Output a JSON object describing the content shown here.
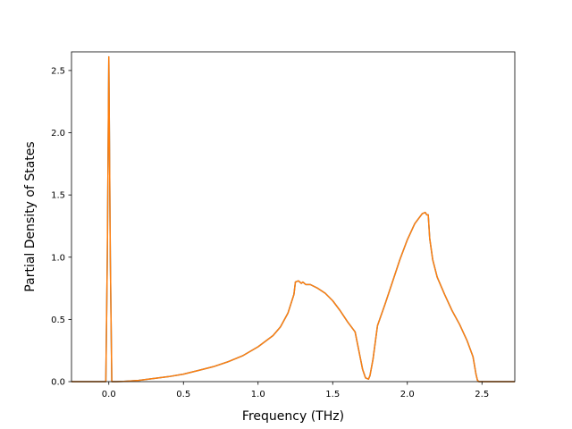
{
  "chart_data": {
    "type": "line",
    "title": "",
    "xlabel": "Frequency (THz)",
    "ylabel": "Partial Density of States",
    "xlim": [
      -0.25,
      2.72
    ],
    "ylim": [
      0.0,
      2.65
    ],
    "xticks": [
      0.0,
      0.5,
      1.0,
      1.5,
      2.0,
      2.5
    ],
    "xtick_labels": [
      "0.0",
      "0.5",
      "1.0",
      "1.5",
      "2.0",
      "2.5"
    ],
    "yticks": [
      0.0,
      0.5,
      1.0,
      1.5,
      2.0,
      2.5
    ],
    "ytick_labels": [
      "0.0",
      "0.5",
      "1.0",
      "1.5",
      "2.0",
      "2.5"
    ],
    "grid": false,
    "legend": "none",
    "series": [
      {
        "color": "#1f77b4",
        "x": [
          -0.25,
          -0.02,
          -0.01,
          0.0,
          0.01,
          0.02,
          0.05,
          0.1,
          0.2,
          0.3,
          0.4,
          0.5,
          0.6,
          0.7,
          0.8,
          0.9,
          1.0,
          1.1,
          1.15,
          1.2,
          1.24,
          1.25,
          1.27,
          1.29,
          1.3,
          1.32,
          1.35,
          1.4,
          1.45,
          1.5,
          1.55,
          1.6,
          1.65,
          1.68,
          1.7,
          1.72,
          1.74,
          1.75,
          1.77,
          1.8,
          1.85,
          1.9,
          1.95,
          2.0,
          2.05,
          2.1,
          2.12,
          2.13,
          2.14,
          2.15,
          2.17,
          2.2,
          2.25,
          2.3,
          2.35,
          2.4,
          2.44,
          2.46,
          2.47,
          2.48,
          2.5,
          2.6,
          2.72
        ],
        "y": [
          0.0,
          0.0,
          1.0,
          2.61,
          1.0,
          0.0,
          0.0,
          0.002,
          0.01,
          0.025,
          0.04,
          0.06,
          0.09,
          0.12,
          0.16,
          0.21,
          0.28,
          0.37,
          0.44,
          0.55,
          0.7,
          0.8,
          0.81,
          0.79,
          0.8,
          0.78,
          0.78,
          0.75,
          0.71,
          0.65,
          0.57,
          0.48,
          0.4,
          0.22,
          0.1,
          0.03,
          0.02,
          0.05,
          0.18,
          0.45,
          0.62,
          0.8,
          0.98,
          1.14,
          1.27,
          1.35,
          1.36,
          1.34,
          1.34,
          1.15,
          0.98,
          0.84,
          0.7,
          0.57,
          0.46,
          0.33,
          0.2,
          0.06,
          0.01,
          0.0,
          0.0,
          0.0,
          0.0
        ]
      },
      {
        "color": "#ff7f0e",
        "x": [
          -0.25,
          -0.02,
          -0.01,
          0.0,
          0.01,
          0.02,
          0.05,
          0.1,
          0.2,
          0.3,
          0.4,
          0.5,
          0.6,
          0.7,
          0.8,
          0.9,
          1.0,
          1.1,
          1.15,
          1.2,
          1.24,
          1.25,
          1.27,
          1.29,
          1.3,
          1.32,
          1.35,
          1.4,
          1.45,
          1.5,
          1.55,
          1.6,
          1.65,
          1.68,
          1.7,
          1.72,
          1.74,
          1.75,
          1.77,
          1.8,
          1.85,
          1.9,
          1.95,
          2.0,
          2.05,
          2.1,
          2.12,
          2.13,
          2.14,
          2.15,
          2.17,
          2.2,
          2.25,
          2.3,
          2.35,
          2.4,
          2.44,
          2.46,
          2.47,
          2.48,
          2.5,
          2.6,
          2.72
        ],
        "y": [
          0.0,
          0.0,
          1.0,
          2.61,
          1.0,
          0.0,
          0.0,
          0.002,
          0.01,
          0.025,
          0.04,
          0.06,
          0.09,
          0.12,
          0.16,
          0.21,
          0.28,
          0.37,
          0.44,
          0.55,
          0.7,
          0.8,
          0.81,
          0.79,
          0.8,
          0.78,
          0.78,
          0.75,
          0.71,
          0.65,
          0.57,
          0.48,
          0.4,
          0.22,
          0.1,
          0.03,
          0.02,
          0.05,
          0.18,
          0.45,
          0.62,
          0.8,
          0.98,
          1.14,
          1.27,
          1.35,
          1.36,
          1.34,
          1.34,
          1.15,
          0.98,
          0.84,
          0.7,
          0.57,
          0.46,
          0.33,
          0.2,
          0.06,
          0.01,
          0.0,
          0.0,
          0.0,
          0.0
        ]
      }
    ]
  }
}
